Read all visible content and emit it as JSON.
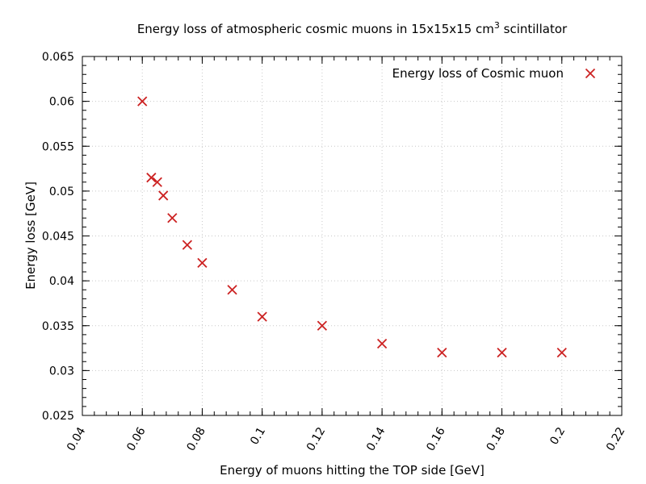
{
  "chart_data": {
    "type": "scatter",
    "title": {
      "prefix": "Energy loss of atmospheric cosmic muons in 15x15x15 cm",
      "sup": "3",
      "suffix": " scintillator"
    },
    "xlabel": "Energy of muons hitting the TOP side [GeV]",
    "ylabel": "Energy loss [GeV]",
    "xlim": [
      0.04,
      0.22
    ],
    "ylim": [
      0.025,
      0.065
    ],
    "x_ticks": [
      0.04,
      0.06,
      0.08,
      0.1,
      0.12,
      0.14,
      0.16,
      0.18,
      0.2,
      0.22
    ],
    "x_tick_labels": [
      "0.04",
      "0.06",
      "0.08",
      "0.1",
      "0.12",
      "0.14",
      "0.16",
      "0.18",
      "0.2",
      "0.22"
    ],
    "y_ticks": [
      0.025,
      0.03,
      0.035,
      0.04,
      0.045,
      0.05,
      0.055,
      0.06,
      0.065
    ],
    "y_tick_labels": [
      "0.025",
      "0.03",
      "0.035",
      "0.04",
      "0.045",
      "0.05",
      "0.055",
      "0.06",
      "0.065"
    ],
    "x_minor_step": 0.004,
    "y_minor_step": 0.001,
    "grid": true,
    "legend_position": "top-right",
    "series": [
      {
        "name": "Energy loss of Cosmic muon",
        "color": "#cc2222",
        "marker": "x",
        "x": [
          0.06,
          0.063,
          0.065,
          0.067,
          0.07,
          0.075,
          0.08,
          0.09,
          0.1,
          0.12,
          0.14,
          0.16,
          0.18,
          0.2
        ],
        "y": [
          0.06,
          0.0515,
          0.051,
          0.0495,
          0.047,
          0.044,
          0.042,
          0.039,
          0.036,
          0.035,
          0.033,
          0.032,
          0.032,
          0.032
        ]
      }
    ]
  }
}
